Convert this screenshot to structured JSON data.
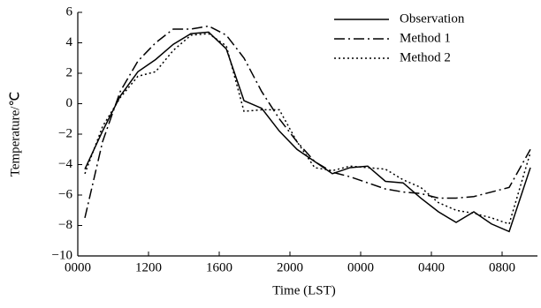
{
  "chart_data": {
    "type": "line",
    "xlabel": "Time (LST)",
    "ylabel": "Temperature/℃",
    "x": [
      0.4,
      1.4,
      2.4,
      3.4,
      4.4,
      5.4,
      6.4,
      7.4,
      8.4,
      9.4,
      10.4,
      11.4,
      12.4,
      13.4,
      14.4,
      15.4,
      16.4,
      17.4,
      18.4,
      19.4,
      20.4,
      21.4,
      22.4,
      23.4,
      24.4,
      25.6
    ],
    "series": [
      {
        "name": "Observation",
        "color": "#000000",
        "style": "solid",
        "values": [
          -4.3,
          -1.8,
          0.5,
          2.1,
          2.9,
          3.9,
          4.6,
          4.7,
          3.6,
          0.2,
          -0.3,
          -1.8,
          -3.0,
          -3.8,
          -4.6,
          -4.2,
          -4.1,
          -5.1,
          -5.2,
          -6.2,
          -7.1,
          -7.8,
          -7.1,
          -7.9,
          -8.4,
          -4.2
        ]
      },
      {
        "name": "Method 1",
        "color": "#000000",
        "style": "dashdot",
        "values": [
          -7.5,
          -2.5,
          0.8,
          2.8,
          4.0,
          4.9,
          4.9,
          5.1,
          4.5,
          3.0,
          0.8,
          -1.0,
          -2.5,
          -3.8,
          -4.5,
          -4.8,
          -5.2,
          -5.6,
          -5.8,
          -5.9,
          -6.2,
          -6.2,
          -6.1,
          -5.8,
          -5.5,
          -3.0
        ]
      },
      {
        "name": "Method 2",
        "color": "#000000",
        "style": "dotted",
        "values": [
          -4.6,
          -1.5,
          0.4,
          1.8,
          2.1,
          3.5,
          4.5,
          4.6,
          3.8,
          -0.5,
          -0.4,
          -0.4,
          -2.5,
          -4.2,
          -4.4,
          -4.1,
          -4.2,
          -4.3,
          -5.0,
          -5.5,
          -6.5,
          -7.0,
          -7.2,
          -7.5,
          -7.9,
          -3.2
        ]
      }
    ],
    "xlim": [
      0,
      26
    ],
    "xticks": [
      {
        "value": 0,
        "label": "0000"
      },
      {
        "value": 4,
        "label": "1200"
      },
      {
        "value": 8,
        "label": "1600"
      },
      {
        "value": 12,
        "label": "2000"
      },
      {
        "value": 16,
        "label": "0000"
      },
      {
        "value": 20,
        "label": "0400"
      },
      {
        "value": 24,
        "label": "0800"
      }
    ],
    "ylim": [
      -10,
      6
    ],
    "yticks": [
      {
        "value": -10,
        "label": "−10"
      },
      {
        "value": -8,
        "label": "−8"
      },
      {
        "value": -6,
        "label": "−6"
      },
      {
        "value": -4,
        "label": "−4"
      },
      {
        "value": -2,
        "label": "−2"
      },
      0,
      2,
      4,
      6
    ],
    "legend": "upper right",
    "grid": false
  }
}
